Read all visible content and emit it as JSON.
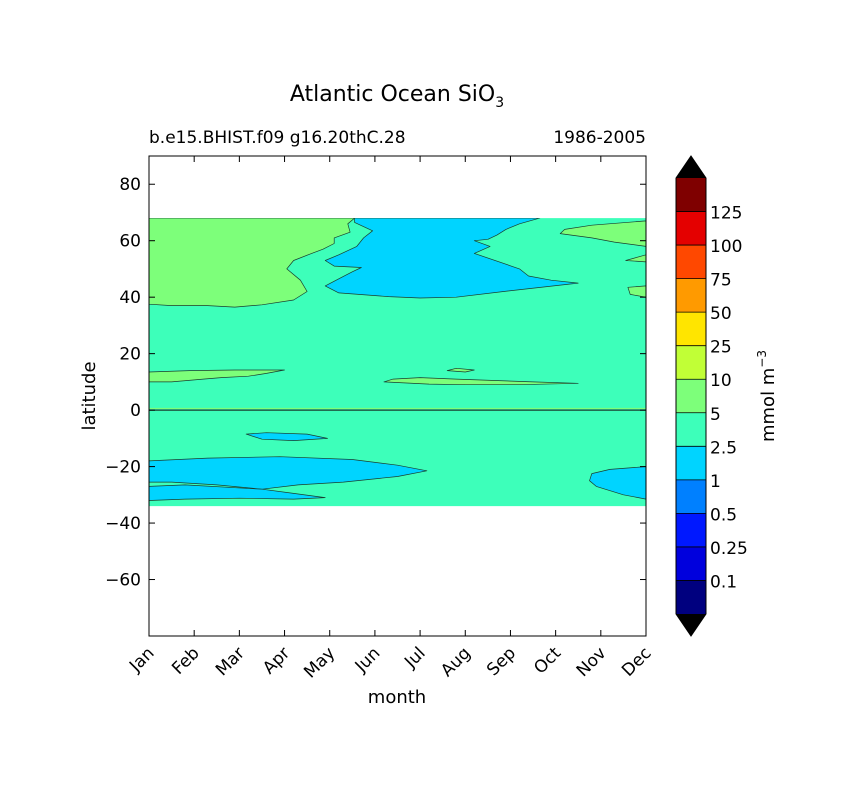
{
  "chart_data": {
    "type": "contour",
    "title": "Atlantic Ocean SiO",
    "title_subscript": "3",
    "subtitle_left": "b.e15.BHIST.f09 g16.20thC.28",
    "subtitle_right": "1986-2005",
    "xlabel": "month",
    "ylabel": "latitude",
    "x_ticks": [
      "Jan",
      "Feb",
      "Mar",
      "Apr",
      "May",
      "Jun",
      "Jul",
      "Aug",
      "Sep",
      "Oct",
      "Nov",
      "Dec"
    ],
    "ylim": [
      -80,
      90
    ],
    "y_ticks": [
      80,
      60,
      40,
      20,
      0,
      -20,
      -40,
      -60
    ],
    "y_tick_labels": [
      "80",
      "60",
      "40",
      "20",
      "0",
      "−20",
      "−40",
      "−60"
    ],
    "data_lat_range": [
      -34,
      68
    ],
    "colorbar": {
      "label": "mmol m",
      "label_superscript": "−3",
      "levels": [
        "0.1",
        "0.25",
        "0.5",
        "1",
        "2.5",
        "5",
        "10",
        "25",
        "50",
        "75",
        "100",
        "125"
      ],
      "colors": [
        "#00007f",
        "#0000dd",
        "#0018ff",
        "#0080ff",
        "#00d4ff",
        "#3dffba",
        "#7dff7a",
        "#c1ff36",
        "#ffe500",
        "#ff9a00",
        "#ff4800",
        "#e40000",
        "#7f0000"
      ],
      "under_color": "#000000",
      "over_color": "#000000"
    },
    "regions": [
      {
        "level": "2.5-5",
        "description": "background over data domain"
      },
      {
        "level": "5-10",
        "months": "Jan-Apr",
        "lat": [
          37,
          68
        ]
      },
      {
        "level": "5-10",
        "months": "Oct-Dec",
        "lat": [
          52,
          67
        ]
      },
      {
        "level": "1-2.5",
        "months": "Jun-Sep",
        "lat": [
          40,
          68
        ]
      },
      {
        "level": "5-10",
        "months": "Jan-Apr",
        "lat": [
          10,
          14
        ]
      },
      {
        "level": "5-10",
        "months": "Jun-Sep",
        "lat": [
          9,
          11
        ]
      },
      {
        "level": "1-2.5",
        "months": "Jan-Jun",
        "lat": [
          -32,
          -16
        ]
      },
      {
        "level": "1-2.5",
        "months": "Nov-Dec",
        "lat": [
          -31,
          -20
        ]
      }
    ]
  }
}
